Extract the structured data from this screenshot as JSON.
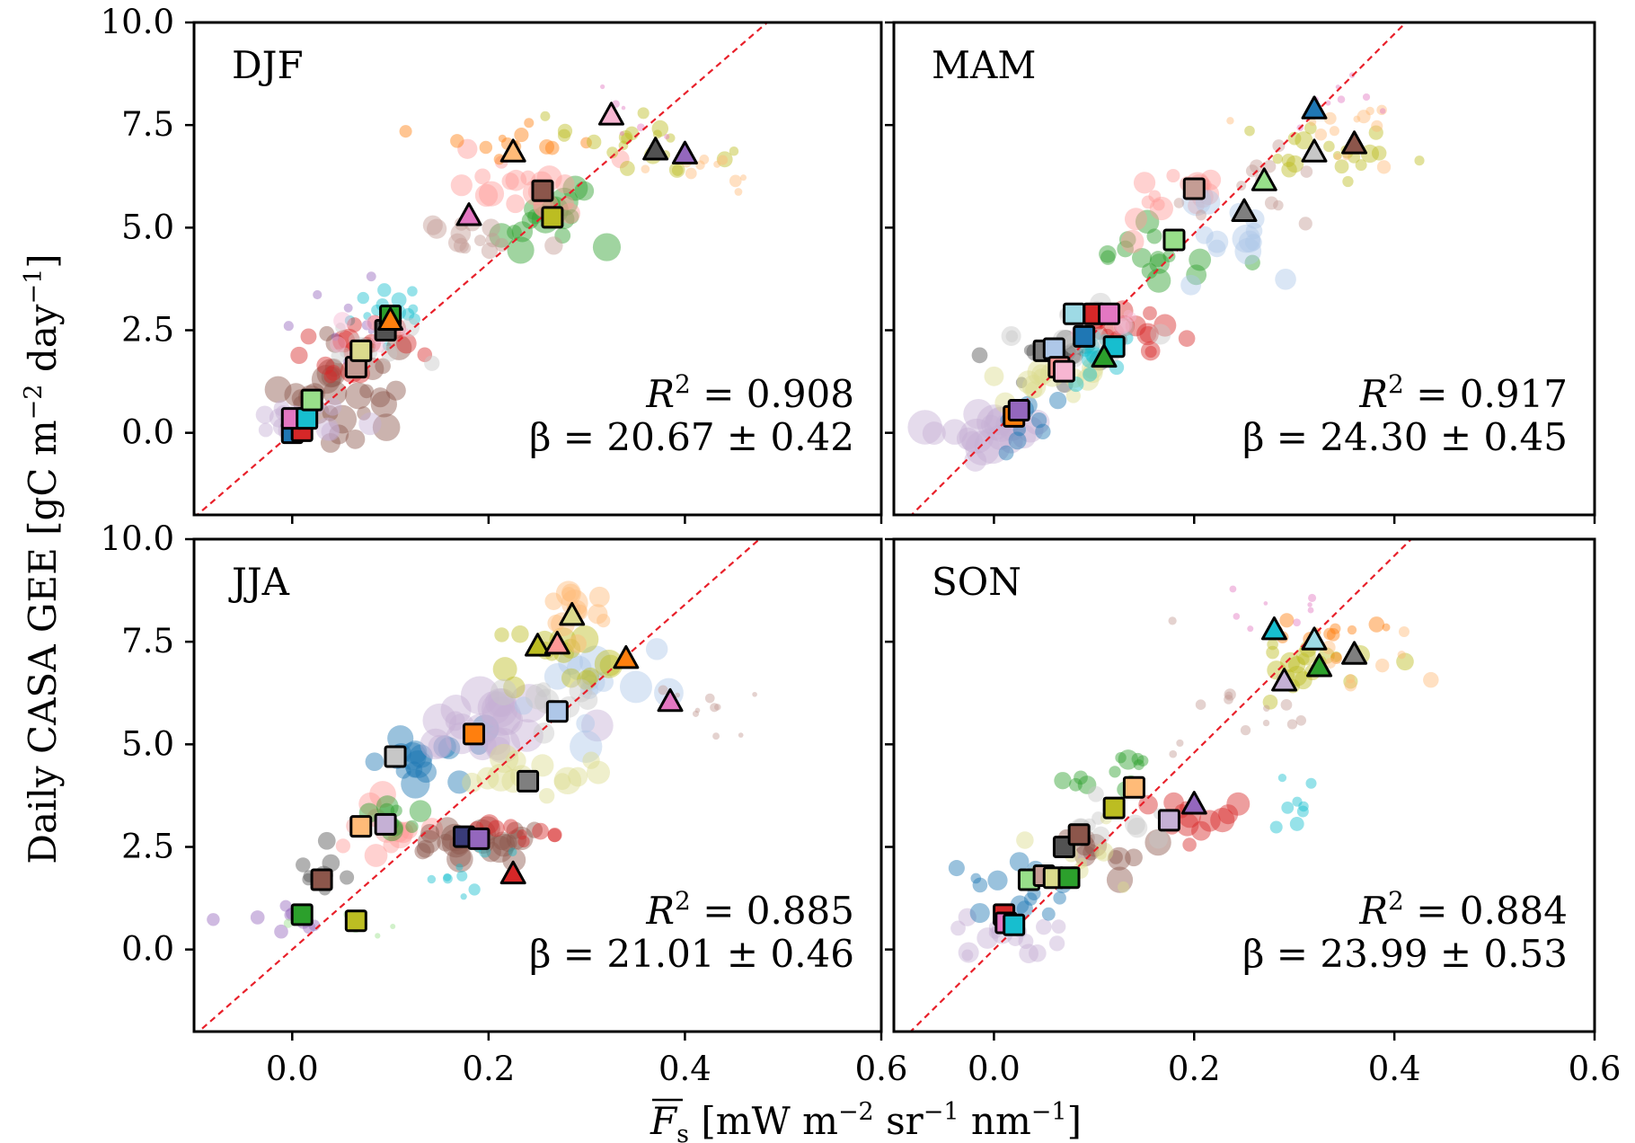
{
  "figure": {
    "ylabel": "Daily CASA GEE [gC m",
    "ylabel_sup1": "−2",
    "ylabel_mid": " day",
    "ylabel_sup2": "−1",
    "ylabel_end": "]",
    "xlabel_var": "F",
    "xlabel_sub": "s",
    "xlabel_units": " [mW m",
    "xlabel_sup1": "−2",
    "xlabel_mid1": " sr",
    "xlabel_sup2": "−1",
    "xlabel_mid2": " nm",
    "xlabel_sup3": "−1",
    "xlabel_end": "]"
  },
  "colors": {
    "regression_line": "#e8202a",
    "palette": [
      "#1f77b4",
      "#ff7f0e",
      "#2ca02c",
      "#d62728",
      "#9467bd",
      "#8c564b",
      "#e377c2",
      "#7f7f7f",
      "#bcbd22",
      "#17becf",
      "#aec7e8",
      "#ffbb78",
      "#98df8a",
      "#ff9896",
      "#c5b0d5",
      "#c49c94",
      "#f7b6d2",
      "#c7c7c7",
      "#dbdb8d",
      "#9edae5",
      "#393b79",
      "#525252"
    ]
  },
  "chart_data": [
    {
      "type": "scatter",
      "title": "DJF",
      "xlim": [
        -0.1,
        0.6
      ],
      "ylim": [
        -2.0,
        10.0
      ],
      "xticks": [
        "0.0",
        "0.2",
        "0.4",
        "0.6"
      ],
      "yticks": [
        "0.0",
        "2.5",
        "5.0",
        "7.5",
        "10.0"
      ],
      "r2_label": "R",
      "r2_sup": "2",
      "r2_value": " = 0.908",
      "beta_label": "β = 20.67 ± 0.42",
      "slope": 20.67,
      "squares": [
        [
          0.0,
          0.0
        ],
        [
          0.01,
          0.05
        ],
        [
          0.0,
          0.35
        ],
        [
          0.015,
          0.35
        ],
        [
          0.02,
          0.8
        ],
        [
          0.065,
          1.6
        ],
        [
          0.07,
          2.0
        ],
        [
          0.095,
          2.5
        ],
        [
          0.1,
          2.85
        ],
        [
          0.255,
          5.9
        ],
        [
          0.265,
          5.25
        ]
      ],
      "triangles": [
        [
          0.1,
          2.75
        ],
        [
          0.18,
          5.3
        ],
        [
          0.225,
          6.85
        ],
        [
          0.325,
          7.75
        ],
        [
          0.37,
          6.9
        ],
        [
          0.4,
          6.8
        ]
      ],
      "clouds": [
        {
          "color": 9,
          "cx": 0.1,
          "cy": 3.0,
          "sx": 0.02,
          "sy": 0.5,
          "n": 14,
          "r": 8
        },
        {
          "color": 5,
          "cx": 0.05,
          "cy": 1.2,
          "sx": 0.04,
          "sy": 0.6,
          "n": 30,
          "r": 14
        },
        {
          "color": 3,
          "cx": 0.06,
          "cy": 1.8,
          "sx": 0.03,
          "sy": 0.5,
          "n": 16,
          "r": 12
        },
        {
          "color": 14,
          "cx": 0.0,
          "cy": 0.2,
          "sx": 0.03,
          "sy": 0.3,
          "n": 16,
          "r": 14
        },
        {
          "color": 2,
          "cx": 0.26,
          "cy": 5.3,
          "sx": 0.03,
          "sy": 0.35,
          "n": 18,
          "r": 14
        },
        {
          "color": 13,
          "cx": 0.24,
          "cy": 5.9,
          "sx": 0.04,
          "sy": 0.4,
          "n": 20,
          "r": 13
        },
        {
          "color": 15,
          "cx": 0.18,
          "cy": 5.0,
          "sx": 0.03,
          "sy": 0.4,
          "n": 14,
          "r": 10
        },
        {
          "color": 1,
          "cx": 0.22,
          "cy": 7.0,
          "sx": 0.03,
          "sy": 0.3,
          "n": 14,
          "r": 8
        },
        {
          "color": 8,
          "cx": 0.36,
          "cy": 7.0,
          "sx": 0.04,
          "sy": 0.35,
          "n": 20,
          "r": 9
        },
        {
          "color": 11,
          "cx": 0.43,
          "cy": 6.6,
          "sx": 0.03,
          "sy": 0.3,
          "n": 10,
          "r": 6
        },
        {
          "color": 6,
          "cx": 0.34,
          "cy": 7.6,
          "sx": 0.03,
          "sy": 0.4,
          "n": 6,
          "r": 4
        },
        {
          "color": 4,
          "cx": 0.05,
          "cy": 2.7,
          "sx": 0.03,
          "sy": 0.4,
          "n": 8,
          "r": 5
        },
        {
          "color": 17,
          "cx": 0.09,
          "cy": 2.2,
          "sx": 0.03,
          "sy": 0.4,
          "n": 10,
          "r": 10
        },
        {
          "color": 16,
          "cx": 0.08,
          "cy": 2.4,
          "sx": 0.03,
          "sy": 0.3,
          "n": 8,
          "r": 9
        }
      ]
    },
    {
      "type": "scatter",
      "title": "MAM",
      "xlim": [
        -0.1,
        0.6
      ],
      "ylim": [
        -2.0,
        10.0
      ],
      "xticks": [
        "0.0",
        "0.2",
        "0.4",
        "0.6"
      ],
      "yticks": [
        "0.0",
        "2.5",
        "5.0",
        "7.5",
        "10.0"
      ],
      "r2_label": "R",
      "r2_sup": "2",
      "r2_value": " = 0.917",
      "beta_label": "β = 24.30 ± 0.45",
      "slope": 24.3,
      "squares": [
        [
          0.02,
          0.4
        ],
        [
          0.025,
          0.55
        ],
        [
          0.05,
          2.0
        ],
        [
          0.06,
          2.05
        ],
        [
          0.065,
          1.6
        ],
        [
          0.07,
          1.5
        ],
        [
          0.08,
          2.9
        ],
        [
          0.09,
          2.35
        ],
        [
          0.1,
          2.9
        ],
        [
          0.115,
          2.9
        ],
        [
          0.12,
          2.1
        ],
        [
          0.18,
          4.7
        ],
        [
          0.2,
          5.95
        ]
      ],
      "triangles": [
        [
          0.11,
          1.85
        ],
        [
          0.25,
          5.4
        ],
        [
          0.27,
          6.15
        ],
        [
          0.32,
          6.85
        ],
        [
          0.32,
          7.9
        ],
        [
          0.36,
          7.05
        ]
      ],
      "clouds": [
        {
          "color": 14,
          "cx": -0.01,
          "cy": 0.0,
          "sx": 0.03,
          "sy": 0.3,
          "n": 22,
          "r": 18
        },
        {
          "color": 0,
          "cx": 0.02,
          "cy": 0.3,
          "sx": 0.02,
          "sy": 0.3,
          "n": 10,
          "r": 12
        },
        {
          "color": 21,
          "cx": 0.05,
          "cy": 1.9,
          "sx": 0.03,
          "sy": 0.4,
          "n": 14,
          "r": 11
        },
        {
          "color": 18,
          "cx": 0.04,
          "cy": 1.2,
          "sx": 0.03,
          "sy": 0.4,
          "n": 14,
          "r": 13
        },
        {
          "color": 3,
          "cx": 0.14,
          "cy": 2.4,
          "sx": 0.03,
          "sy": 0.3,
          "n": 16,
          "r": 12
        },
        {
          "color": 9,
          "cx": 0.1,
          "cy": 1.8,
          "sx": 0.02,
          "sy": 0.4,
          "n": 12,
          "r": 9
        },
        {
          "color": 2,
          "cx": 0.16,
          "cy": 4.3,
          "sx": 0.03,
          "sy": 0.4,
          "n": 16,
          "r": 12
        },
        {
          "color": 13,
          "cx": 0.17,
          "cy": 5.8,
          "sx": 0.03,
          "sy": 0.4,
          "n": 16,
          "r": 12
        },
        {
          "color": 10,
          "cx": 0.22,
          "cy": 4.8,
          "sx": 0.04,
          "sy": 0.4,
          "n": 14,
          "r": 15
        },
        {
          "color": 8,
          "cx": 0.33,
          "cy": 6.9,
          "sx": 0.04,
          "sy": 0.35,
          "n": 20,
          "r": 9
        },
        {
          "color": 15,
          "cx": 0.27,
          "cy": 5.9,
          "sx": 0.04,
          "sy": 0.6,
          "n": 14,
          "r": 7
        },
        {
          "color": 11,
          "cx": 0.35,
          "cy": 7.2,
          "sx": 0.04,
          "sy": 0.4,
          "n": 14,
          "r": 7
        },
        {
          "color": 6,
          "cx": 0.34,
          "cy": 8.0,
          "sx": 0.03,
          "sy": 0.3,
          "n": 8,
          "r": 4
        },
        {
          "color": 17,
          "cx": 0.1,
          "cy": 2.6,
          "sx": 0.04,
          "sy": 0.4,
          "n": 14,
          "r": 11
        },
        {
          "color": 16,
          "cx": 0.09,
          "cy": 2.8,
          "sx": 0.03,
          "sy": 0.3,
          "n": 8,
          "r": 9
        }
      ]
    },
    {
      "type": "scatter",
      "title": "JJA",
      "xlim": [
        -0.1,
        0.6
      ],
      "ylim": [
        -2.0,
        10.0
      ],
      "xticks": [
        "0.0",
        "0.2",
        "0.4",
        "0.6"
      ],
      "yticks": [
        "0.0",
        "2.5",
        "5.0",
        "7.5",
        "10.0"
      ],
      "r2_label": "R",
      "r2_sup": "2",
      "r2_value": " = 0.885",
      "beta_label": "β = 21.01 ± 0.46",
      "slope": 21.01,
      "squares": [
        [
          0.01,
          0.85
        ],
        [
          0.03,
          1.7
        ],
        [
          0.065,
          0.7
        ],
        [
          0.07,
          3.0
        ],
        [
          0.095,
          3.05
        ],
        [
          0.105,
          4.7
        ],
        [
          0.175,
          2.75
        ],
        [
          0.185,
          5.25
        ],
        [
          0.19,
          2.7
        ],
        [
          0.24,
          4.1
        ],
        [
          0.27,
          5.8
        ]
      ],
      "triangles": [
        [
          0.225,
          1.85
        ],
        [
          0.25,
          7.4
        ],
        [
          0.27,
          7.45
        ],
        [
          0.285,
          8.15
        ],
        [
          0.34,
          7.1
        ],
        [
          0.385,
          6.05
        ]
      ],
      "clouds": [
        {
          "color": 4,
          "cx": 0.0,
          "cy": 0.9,
          "sx": 0.02,
          "sy": 0.2,
          "n": 10,
          "r": 7
        },
        {
          "color": 21,
          "cx": 0.03,
          "cy": 1.7,
          "sx": 0.02,
          "sy": 0.3,
          "n": 10,
          "r": 10
        },
        {
          "color": 0,
          "cx": 0.12,
          "cy": 4.7,
          "sx": 0.03,
          "sy": 0.6,
          "n": 18,
          "r": 15
        },
        {
          "color": 13,
          "cx": 0.08,
          "cy": 3.0,
          "sx": 0.03,
          "sy": 0.4,
          "n": 14,
          "r": 13
        },
        {
          "color": 2,
          "cx": 0.1,
          "cy": 3.1,
          "sx": 0.02,
          "sy": 0.3,
          "n": 10,
          "r": 11
        },
        {
          "color": 5,
          "cx": 0.18,
          "cy": 2.6,
          "sx": 0.04,
          "sy": 0.2,
          "n": 26,
          "r": 14
        },
        {
          "color": 3,
          "cx": 0.23,
          "cy": 2.8,
          "sx": 0.03,
          "sy": 0.2,
          "n": 10,
          "r": 10
        },
        {
          "color": 14,
          "cx": 0.2,
          "cy": 5.6,
          "sx": 0.04,
          "sy": 0.5,
          "n": 22,
          "r": 19
        },
        {
          "color": 10,
          "cx": 0.3,
          "cy": 6.4,
          "sx": 0.04,
          "sy": 0.5,
          "n": 14,
          "r": 16
        },
        {
          "color": 18,
          "cx": 0.24,
          "cy": 4.3,
          "sx": 0.04,
          "sy": 0.3,
          "n": 14,
          "r": 14
        },
        {
          "color": 8,
          "cx": 0.26,
          "cy": 7.4,
          "sx": 0.03,
          "sy": 0.3,
          "n": 16,
          "r": 14
        },
        {
          "color": 11,
          "cx": 0.3,
          "cy": 8.3,
          "sx": 0.03,
          "sy": 0.3,
          "n": 14,
          "r": 13
        },
        {
          "color": 9,
          "cx": 0.19,
          "cy": 1.8,
          "sx": 0.05,
          "sy": 0.5,
          "n": 12,
          "r": 6
        },
        {
          "color": 15,
          "cx": 0.41,
          "cy": 5.8,
          "sx": 0.04,
          "sy": 0.3,
          "n": 10,
          "r": 5
        },
        {
          "color": 12,
          "cx": 0.05,
          "cy": 0.7,
          "sx": 0.03,
          "sy": 0.2,
          "n": 6,
          "r": 5
        },
        {
          "color": 17,
          "cx": 0.27,
          "cy": 6.0,
          "sx": 0.03,
          "sy": 0.4,
          "n": 10,
          "r": 13
        }
      ]
    },
    {
      "type": "scatter",
      "title": "SON",
      "xlim": [
        -0.1,
        0.6
      ],
      "ylim": [
        -2.0,
        10.0
      ],
      "xticks": [
        "0.0",
        "0.2",
        "0.4",
        "0.6"
      ],
      "yticks": [
        "0.0",
        "2.5",
        "5.0",
        "7.5",
        "10.0"
      ],
      "r2_label": "R",
      "r2_sup": "2",
      "r2_value": " = 0.884",
      "beta_label": "β = 23.99 ± 0.53",
      "slope": 23.99,
      "squares": [
        [
          0.01,
          0.85
        ],
        [
          0.012,
          0.65
        ],
        [
          0.02,
          0.6
        ],
        [
          0.035,
          1.7
        ],
        [
          0.05,
          1.8
        ],
        [
          0.06,
          1.75
        ],
        [
          0.07,
          2.5
        ],
        [
          0.075,
          1.75
        ],
        [
          0.085,
          2.8
        ],
        [
          0.12,
          3.45
        ],
        [
          0.14,
          3.95
        ],
        [
          0.175,
          3.15
        ]
      ],
      "triangles": [
        [
          0.2,
          3.55
        ],
        [
          0.28,
          7.8
        ],
        [
          0.29,
          6.55
        ],
        [
          0.32,
          7.55
        ],
        [
          0.325,
          6.9
        ],
        [
          0.36,
          7.2
        ]
      ],
      "clouds": [
        {
          "color": 14,
          "cx": 0.01,
          "cy": 0.3,
          "sx": 0.03,
          "sy": 0.3,
          "n": 16,
          "r": 11
        },
        {
          "color": 0,
          "cx": 0.03,
          "cy": 1.5,
          "sx": 0.03,
          "sy": 0.4,
          "n": 14,
          "r": 10
        },
        {
          "color": 5,
          "cx": 0.1,
          "cy": 2.3,
          "sx": 0.03,
          "sy": 0.3,
          "n": 12,
          "r": 13
        },
        {
          "color": 2,
          "cx": 0.12,
          "cy": 4.0,
          "sx": 0.03,
          "sy": 0.6,
          "n": 14,
          "r": 10
        },
        {
          "color": 3,
          "cx": 0.2,
          "cy": 3.2,
          "sx": 0.03,
          "sy": 0.2,
          "n": 14,
          "r": 12
        },
        {
          "color": 9,
          "cx": 0.3,
          "cy": 3.5,
          "sx": 0.02,
          "sy": 0.3,
          "n": 8,
          "r": 8
        },
        {
          "color": 8,
          "cx": 0.32,
          "cy": 7.0,
          "sx": 0.04,
          "sy": 0.4,
          "n": 20,
          "r": 10
        },
        {
          "color": 1,
          "cx": 0.33,
          "cy": 7.7,
          "sx": 0.03,
          "sy": 0.3,
          "n": 12,
          "r": 8
        },
        {
          "color": 11,
          "cx": 0.38,
          "cy": 7.1,
          "sx": 0.04,
          "sy": 0.3,
          "n": 10,
          "r": 8
        },
        {
          "color": 15,
          "cx": 0.24,
          "cy": 5.9,
          "sx": 0.04,
          "sy": 0.6,
          "n": 14,
          "r": 6
        },
        {
          "color": 6,
          "cx": 0.29,
          "cy": 8.3,
          "sx": 0.03,
          "sy": 0.3,
          "n": 8,
          "r": 4
        },
        {
          "color": 17,
          "cx": 0.1,
          "cy": 3.0,
          "sx": 0.03,
          "sy": 0.3,
          "n": 10,
          "r": 11
        },
        {
          "color": 18,
          "cx": 0.08,
          "cy": 2.2,
          "sx": 0.03,
          "sy": 0.4,
          "n": 10,
          "r": 10
        }
      ]
    }
  ]
}
